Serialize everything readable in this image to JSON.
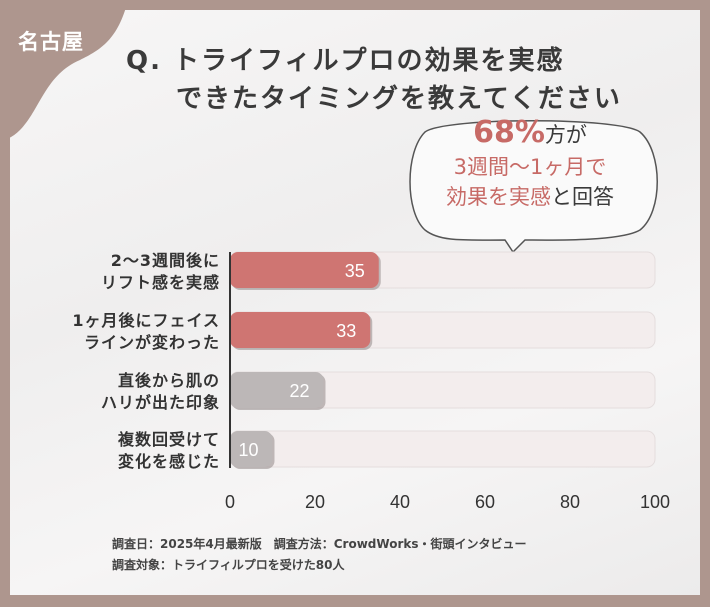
{
  "badge": "名古屋",
  "title": {
    "line1": "Q. トライフィルプロの効果を実感",
    "line2": "できたタイミングを教えてください"
  },
  "callout": {
    "percent": "68%",
    "line1_suffix": "方が",
    "line2": "3週間〜1ヶ月で",
    "line3_highlight": "効果を実感",
    "line3_suffix": "と回答"
  },
  "chart_data": {
    "type": "bar",
    "orientation": "horizontal",
    "categories": [
      [
        "2〜3週間後に",
        "リフト感を実感"
      ],
      [
        "1ヶ月後にフェイス",
        "ラインが変わった"
      ],
      [
        "直後から肌の",
        "ハリが出た印象"
      ],
      [
        "複数回受けて",
        "変化を感じた"
      ]
    ],
    "values": [
      35,
      33,
      22,
      10
    ],
    "xlim": [
      0,
      100
    ],
    "xticks": [
      "0",
      "20",
      "40",
      "60",
      "80",
      "100"
    ],
    "grid": false,
    "colors": {
      "highlight": "#cf7572",
      "muted": "#bcb7b7",
      "track": "#f3eded"
    }
  },
  "footnote": {
    "line1": "調査日：2025年4月最新版　調査方法：CrowdWorks・街頭インタビュー",
    "line2": "調査対象：トライフィルプロを受けた80人"
  }
}
